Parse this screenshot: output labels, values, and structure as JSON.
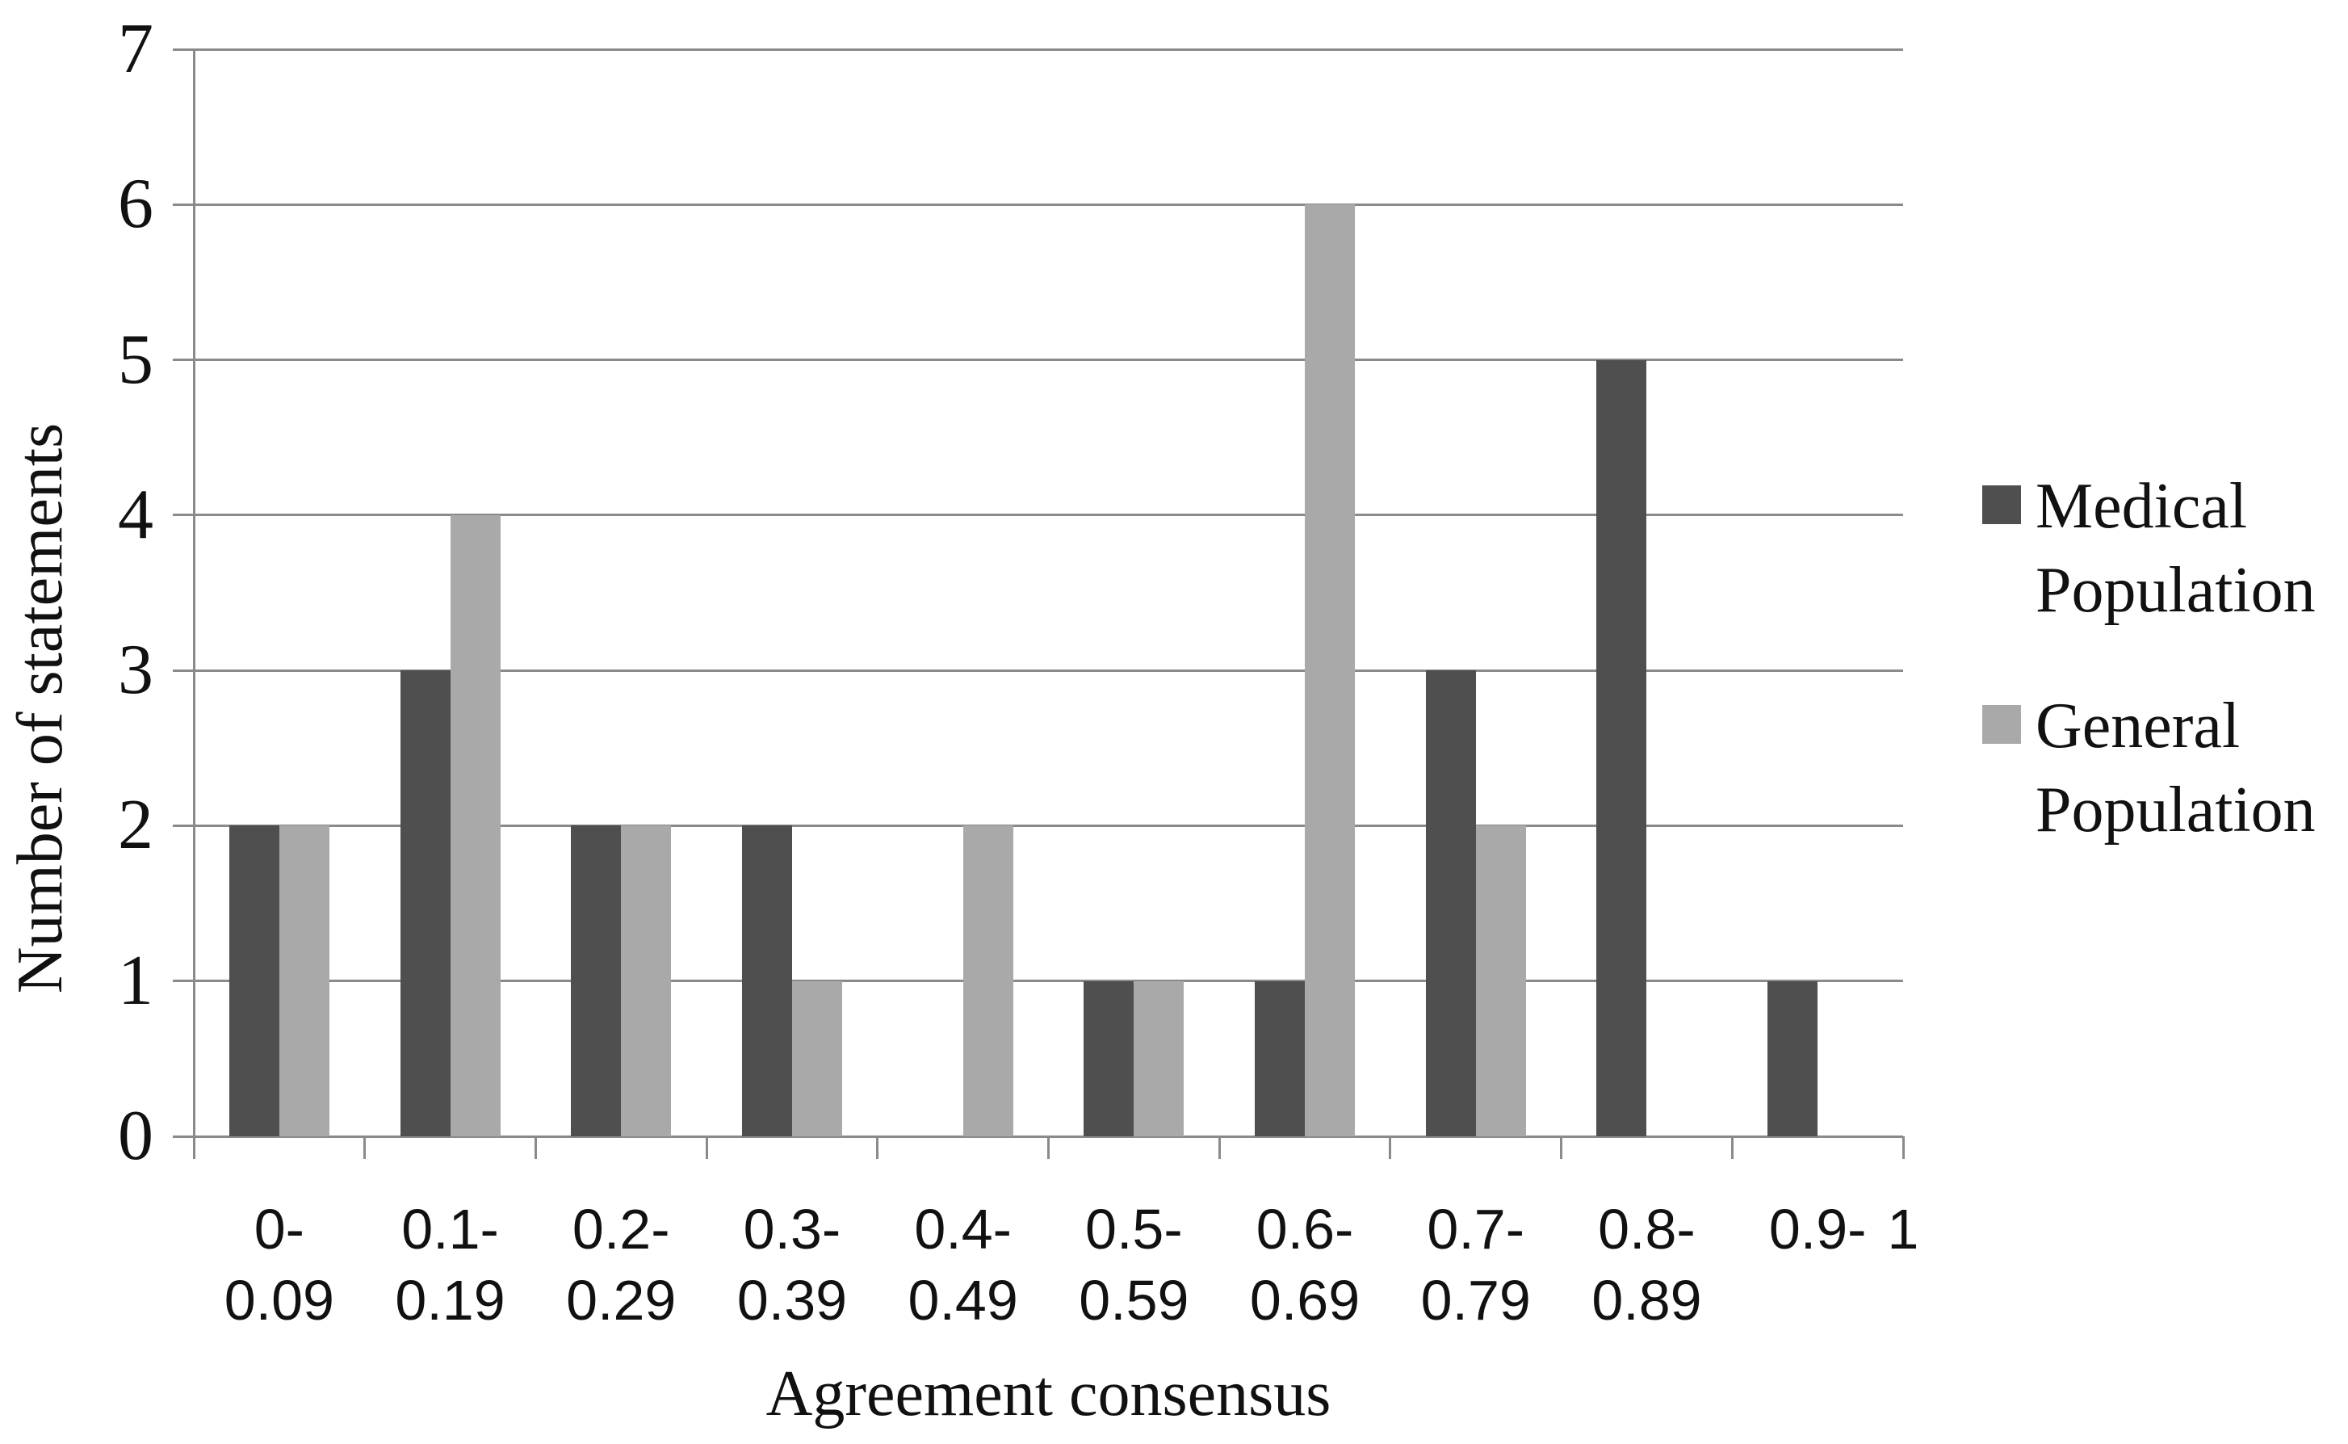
{
  "colors": {
    "medical_series": "#4f4f4f",
    "general_series": "#a9a9a9",
    "gridline": "#8a8a8a",
    "axis": "#8a8a8a",
    "text": "#111111",
    "background": "#ffffff"
  },
  "chart_data": {
    "type": "bar",
    "title": "",
    "xlabel": "Agreement consensus",
    "ylabel": "Number of statements",
    "ylim": [
      0,
      7
    ],
    "yticks": [
      0,
      1,
      2,
      3,
      4,
      5,
      6,
      7
    ],
    "grid": true,
    "legend_position": "right",
    "categories": [
      "0-0.09",
      "0.1-0.19",
      "0.2-0.29",
      "0.3-0.39",
      "0.4-0.49",
      "0.5-0.59",
      "0.6-0.69",
      "0.7-0.79",
      "0.8-0.89",
      "0.9-1"
    ],
    "category_tick_labels": [
      [
        "0-",
        "0.09"
      ],
      [
        "0.1-",
        "0.19"
      ],
      [
        "0.2-",
        "0.29"
      ],
      [
        "0.3-",
        "0.39"
      ],
      [
        "0.4-",
        "0.49"
      ],
      [
        "0.5-",
        "0.59"
      ],
      [
        "0.6-",
        "0.69"
      ],
      [
        "0.7-",
        "0.79"
      ],
      [
        "0.8-",
        "0.89"
      ],
      [
        "0.9-",
        ""
      ]
    ],
    "axis_end_label": "1",
    "series": [
      {
        "name": "Medical Population",
        "color": "#4f4f4f",
        "values": [
          2,
          3,
          2,
          2,
          0,
          1,
          1,
          3,
          5,
          1
        ]
      },
      {
        "name": "General Population",
        "color": "#a9a9a9",
        "values": [
          2,
          4,
          2,
          1,
          2,
          1,
          6,
          2,
          0,
          0
        ]
      }
    ]
  },
  "legend": {
    "items": [
      {
        "name": "Medical Population",
        "lines": [
          "Medical",
          "Population"
        ],
        "color": "#4f4f4f"
      },
      {
        "name": "General Population",
        "lines": [
          "General",
          "Population"
        ],
        "color": "#a9a9a9"
      }
    ]
  }
}
